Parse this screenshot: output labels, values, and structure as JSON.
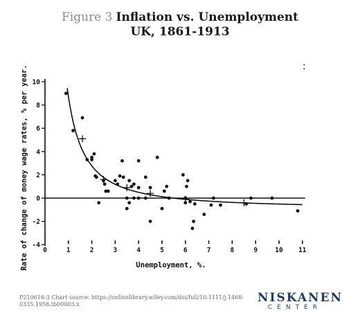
{
  "header": {
    "figure_label": "Figure 3",
    "title": "Inflation vs. Unemployment",
    "subtitle": "UK, 1861-1913"
  },
  "footer": {
    "source": "P210616-3 Chart source:  https://onlinelibrary.wiley.com/doi/full/10.1111/j.1468-0335.1958.tb00003.x"
  },
  "logo": {
    "main": "NISKANEN",
    "sub": "CENTER"
  },
  "corner_mark": ":",
  "chart_data": {
    "type": "scatter",
    "title": "",
    "xlabel": "Unemployment, %.",
    "ylabel": "Rate of change of money wage rates, % per year.",
    "xlim": [
      0,
      11
    ],
    "ylim": [
      -4,
      10
    ],
    "x_ticks": [
      0,
      1,
      2,
      3,
      4,
      5,
      6,
      7,
      8,
      9,
      10,
      11
    ],
    "y_ticks": [
      -4,
      -2,
      0,
      2,
      4,
      6,
      8,
      10
    ],
    "grid": false,
    "series": [
      {
        "marker": "dot",
        "x": [
          0.9,
          1.2,
          1.6,
          1.8,
          2.0,
          2.0,
          2.1,
          2.15,
          2.2,
          2.3,
          2.5,
          2.55,
          2.6,
          2.7,
          3.0,
          3.1,
          3.2,
          3.3,
          3.35,
          3.5,
          3.5,
          3.6,
          3.6,
          3.7,
          3.8,
          3.8,
          4.0,
          4.0,
          4.0,
          4.3,
          4.3,
          4.5,
          4.5,
          4.8,
          5.0,
          5.1,
          5.2,
          5.3,
          5.9,
          6.0,
          6.0,
          6.05,
          6.1,
          6.2,
          6.3,
          6.35,
          6.4,
          6.8,
          7.1,
          7.2,
          7.5,
          8.6,
          8.8,
          9.7,
          10.8
        ],
        "y": [
          9.0,
          5.8,
          6.9,
          3.3,
          3.3,
          3.5,
          3.8,
          1.9,
          1.8,
          -0.4,
          1.5,
          1.2,
          0.6,
          0.6,
          1.5,
          1.2,
          1.9,
          3.2,
          1.8,
          0.0,
          -0.9,
          1.5,
          -0.4,
          1.0,
          1.2,
          0.0,
          3.2,
          0.0,
          0.9,
          1.8,
          0.0,
          0.9,
          -2.0,
          3.5,
          -0.9,
          0.6,
          1.0,
          0.0,
          2.0,
          0.0,
          -0.4,
          1.0,
          1.5,
          -0.3,
          -2.6,
          -2.0,
          -0.5,
          -1.4,
          -0.6,
          0.0,
          -0.6,
          -0.5,
          0.0,
          0.0,
          -1.1
        ]
      },
      {
        "marker": "cross",
        "x": [
          1.6,
          2.5,
          3.5,
          4.5,
          6.0,
          8.5
        ],
        "y": [
          5.1,
          1.6,
          0.9,
          0.4,
          -0.1,
          -0.4
        ]
      }
    ],
    "fitted_curve": {
      "equation": "y + 0.900 = 9.638 * x^-1.394",
      "x_range": [
        0.95,
        11
      ]
    }
  }
}
